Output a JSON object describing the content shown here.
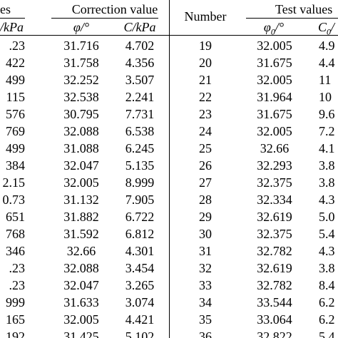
{
  "header": {
    "left_group_title_partial": "es",
    "correction_title": "Correction value",
    "number_title": "Number",
    "right_test_title": "Test values",
    "left_c_partial": "/kPa",
    "phi_label": "φ/°",
    "c_label": "C/kPa",
    "phi0_label": "φ0/°",
    "c0_partial": "C0/"
  },
  "left_rows": [
    {
      "c_test": ".23",
      "phi_corr": "31.716",
      "c_corr": "4.702"
    },
    {
      "c_test": "422",
      "phi_corr": "31.758",
      "c_corr": "4.356"
    },
    {
      "c_test": "499",
      "phi_corr": "32.252",
      "c_corr": "3.507"
    },
    {
      "c_test": "115",
      "phi_corr": "32.538",
      "c_corr": "2.241"
    },
    {
      "c_test": "576",
      "phi_corr": "30.795",
      "c_corr": "7.731"
    },
    {
      "c_test": "769",
      "phi_corr": "32.088",
      "c_corr": "6.538"
    },
    {
      "c_test": "499",
      "phi_corr": "31.088",
      "c_corr": "6.245"
    },
    {
      "c_test": "384",
      "phi_corr": "32.047",
      "c_corr": "5.135"
    },
    {
      "c_test": "2.15",
      "phi_corr": "32.005",
      "c_corr": "8.999"
    },
    {
      "c_test": "0.73",
      "phi_corr": "31.132",
      "c_corr": "7.905"
    },
    {
      "c_test": "651",
      "phi_corr": "31.882",
      "c_corr": "6.722"
    },
    {
      "c_test": "768",
      "phi_corr": "31.592",
      "c_corr": "6.812"
    },
    {
      "c_test": "346",
      "phi_corr": "32.66",
      "c_corr": "4.301"
    },
    {
      "c_test": ".23",
      "phi_corr": "32.088",
      "c_corr": "3.454"
    },
    {
      "c_test": ".23",
      "phi_corr": "32.047",
      "c_corr": "3.265"
    },
    {
      "c_test": "999",
      "phi_corr": "31.633",
      "c_corr": "3.074"
    },
    {
      "c_test": "165",
      "phi_corr": "32.005",
      "c_corr": "4.421"
    },
    {
      "c_test": "192",
      "phi_corr": "31.425",
      "c_corr": "5.102"
    }
  ],
  "right_rows": [
    {
      "number": "19",
      "phi0": "32.005",
      "c0": "4.9"
    },
    {
      "number": "20",
      "phi0": "31.675",
      "c0": "4.4"
    },
    {
      "number": "21",
      "phi0": "32.005",
      "c0": "11"
    },
    {
      "number": "22",
      "phi0": "31.964",
      "c0": "10"
    },
    {
      "number": "23",
      "phi0": "31.675",
      "c0": "9.6"
    },
    {
      "number": "24",
      "phi0": "32.005",
      "c0": "7.2"
    },
    {
      "number": "25",
      "phi0": "32.66",
      "c0": "4.1"
    },
    {
      "number": "26",
      "phi0": "32.293",
      "c0": "3.8"
    },
    {
      "number": "27",
      "phi0": "32.375",
      "c0": "3.8"
    },
    {
      "number": "28",
      "phi0": "32.334",
      "c0": "4.3"
    },
    {
      "number": "29",
      "phi0": "32.619",
      "c0": "5.0"
    },
    {
      "number": "30",
      "phi0": "32.375",
      "c0": "5.4"
    },
    {
      "number": "31",
      "phi0": "32.782",
      "c0": "4.3"
    },
    {
      "number": "32",
      "phi0": "32.619",
      "c0": "3.8"
    },
    {
      "number": "33",
      "phi0": "32.782",
      "c0": "8.4"
    },
    {
      "number": "34",
      "phi0": "33.544",
      "c0": "6.2"
    },
    {
      "number": "35",
      "phi0": "33.064",
      "c0": "6.2"
    },
    {
      "number": "36",
      "phi0": "32.822",
      "c0": "5.4"
    }
  ]
}
